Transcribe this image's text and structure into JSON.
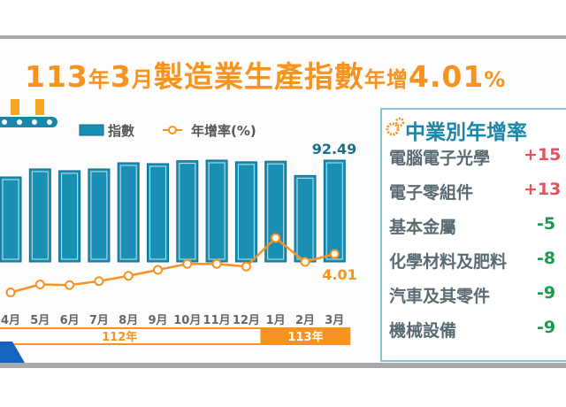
{
  "title": {
    "year": "113",
    "year_unit": "年",
    "month": "3",
    "month_unit": "月",
    "main": "製造業生產指數",
    "suffix": "年增",
    "value": "4.01",
    "pct": "%"
  },
  "legend": {
    "bar": "指數",
    "line": "年增率(%)"
  },
  "colors": {
    "bar": "#1a8fb4",
    "line": "#f7931e",
    "positive": "#e8505b",
    "negative": "#1a9a4a",
    "title": "#f7931e"
  },
  "chart_data": {
    "type": "bar+line",
    "categories": [
      "4月",
      "5月",
      "6月",
      "7月",
      "8月",
      "9月",
      "10月",
      "11月",
      "12月",
      "1月",
      "2月",
      "3月"
    ],
    "year_groups": [
      {
        "label": "112年",
        "span": 9
      },
      {
        "label": "113年",
        "span": 3
      }
    ],
    "series": [
      {
        "name": "指數",
        "type": "bar",
        "values": [
          77.2,
          84.5,
          82.9,
          84.5,
          90.1,
          89.3,
          92.0,
          92.5,
          91.0,
          91.5,
          78.5,
          92.49
        ]
      },
      {
        "name": "年增率(%)",
        "type": "line",
        "values": [
          -25,
          -19,
          -19.5,
          -16.5,
          -12.5,
          -8,
          -3.5,
          -3.5,
          -5.5,
          16,
          -2,
          4.01
        ]
      }
    ],
    "data_labels": {
      "bar_last": "92.49",
      "line_last": "4.01"
    },
    "grid": false,
    "legend_position": "top"
  },
  "panel": {
    "title": "中業別年增率",
    "icon": "gears-icon",
    "rows": [
      {
        "label": "電腦電子光學",
        "value": "+15",
        "sign": "positive"
      },
      {
        "label": "電子零組件",
        "value": "+13",
        "sign": "positive"
      },
      {
        "label": "基本金屬",
        "value": "-5",
        "sign": "negative"
      },
      {
        "label": "化學材料及肥料",
        "value": "-8",
        "sign": "negative"
      },
      {
        "label": "汽車及其零件",
        "value": "-9",
        "sign": "negative"
      },
      {
        "label": "機械設備",
        "value": "-9",
        "sign": "negative"
      }
    ]
  }
}
